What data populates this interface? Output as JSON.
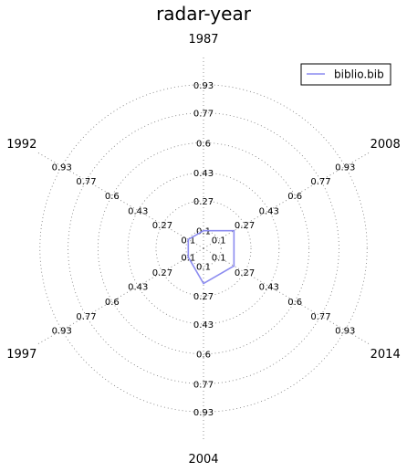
{
  "chart_data": {
    "type": "radar",
    "title": "radar-year",
    "axes": [
      "1987",
      "2008",
      "2014",
      "2004",
      "1997",
      "1992"
    ],
    "ring_ticks": [
      "0.1",
      "0.27",
      "0.43",
      "0.6",
      "0.77",
      "0.93"
    ],
    "rlim": [
      0,
      1.1
    ],
    "grid": true,
    "legend_position": "top-right",
    "series": [
      {
        "name": "biblio.bib",
        "color": "#8c8cf0",
        "values": [
          0.1,
          0.2,
          0.2,
          0.2,
          0.1,
          0.1
        ]
      }
    ]
  }
}
